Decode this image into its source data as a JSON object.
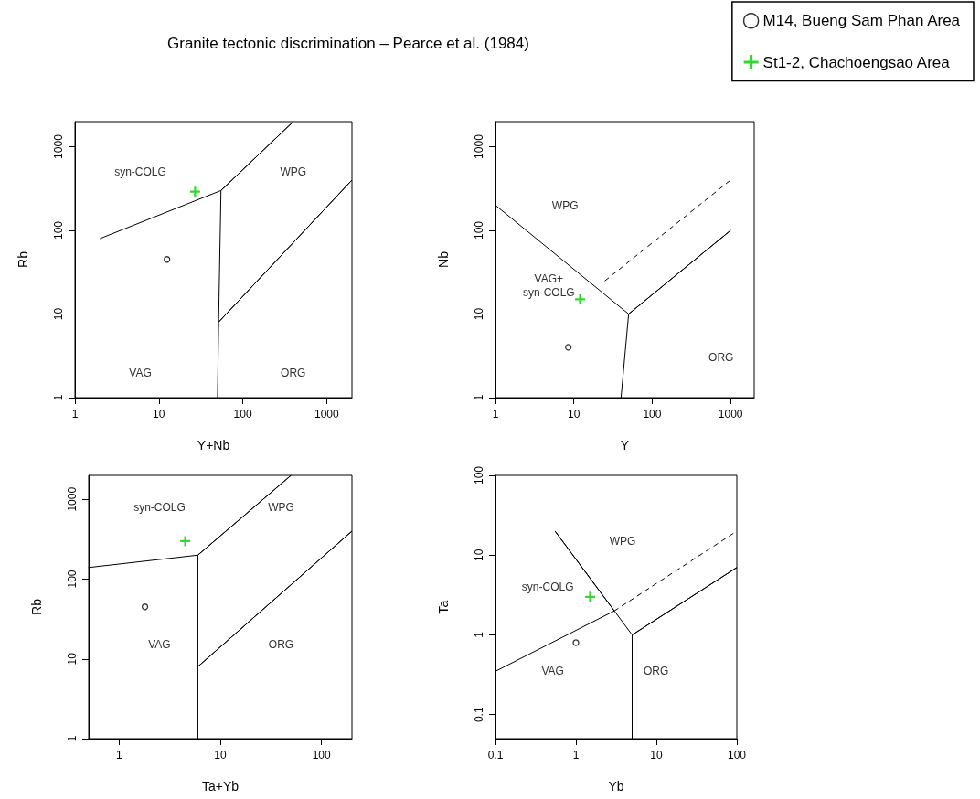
{
  "chart_data": [
    {
      "type": "scatter",
      "title": "Granite tectonic discrimination – Pearce et al. (1984)",
      "xlabel": "Y+Nb",
      "ylabel": "Rb",
      "log": "xy",
      "grid": false,
      "legend": "top right",
      "xlim": [
        1,
        2000
      ],
      "ylim": [
        1,
        2000
      ],
      "xticks": [
        1,
        10,
        100,
        1000
      ],
      "yticks": [
        1,
        10,
        100,
        1000
      ],
      "series": [
        {
          "type": "line",
          "color": "#000000",
          "line_style": "solid",
          "x": [
            2,
            55,
            400,
            55,
            51.5,
            2000,
            51.5,
            50
          ],
          "values": [
            80,
            300,
            2000,
            300,
            8,
            400,
            8,
            1
          ]
        },
        {
          "name": "M14, Bueng Sam Phan Area",
          "color": "#000000",
          "marker": "circle",
          "x": [
            12.5
          ],
          "values": [
            45
          ]
        },
        {
          "name": "St1-2, Chachoengsao Area",
          "color": "#00cc00",
          "marker": "cross",
          "x": [
            27
          ],
          "values": [
            290
          ]
        }
      ],
      "annotations": [
        "syn-COLG",
        "WPG",
        "VAG",
        "ORG"
      ]
    },
    {
      "type": "scatter",
      "xlabel": "Y",
      "ylabel": "Nb",
      "log": "xy",
      "grid": false,
      "xlim": [
        1,
        2000
      ],
      "ylim": [
        1,
        2000
      ],
      "xticks": [
        1,
        10,
        100,
        1000
      ],
      "yticks": [
        1,
        10,
        100,
        1000
      ],
      "series": [
        {
          "type": "line",
          "color": "#000000",
          "line_style": "solid",
          "x": [
            1,
            50,
            1000,
            50,
            40
          ],
          "values": [
            200,
            10,
            100,
            10,
            1
          ]
        },
        {
          "type": "line",
          "color": "#000000",
          "line_style": "dashed",
          "x": [
            25,
            1000
          ],
          "values": [
            25,
            400
          ]
        },
        {
          "color": "#000000",
          "marker": "circle",
          "x": [
            8.5
          ],
          "values": [
            4
          ]
        },
        {
          "color": "#00cc00",
          "marker": "cross",
          "x": [
            12
          ],
          "values": [
            15
          ]
        }
      ],
      "annotations": [
        "WPG",
        "VAG+\nsyn-COLG",
        "ORG"
      ]
    },
    {
      "type": "scatter",
      "xlabel": "Ta+Yb",
      "ylabel": "Rb",
      "log": "xy",
      "grid": false,
      "xlim": [
        0.5,
        200
      ],
      "ylim": [
        1,
        2000
      ],
      "xticks": [
        1,
        10,
        100
      ],
      "yticks": [
        1,
        10,
        100,
        1000
      ],
      "series": [
        {
          "type": "line",
          "color": "#000000",
          "line_style": "solid",
          "x": [
            0.5,
            6,
            50,
            6,
            6,
            200,
            6,
            6
          ],
          "values": [
            140,
            200,
            2000,
            200,
            8,
            400,
            8,
            1
          ]
        },
        {
          "color": "#000000",
          "marker": "circle",
          "x": [
            1.8
          ],
          "values": [
            45
          ]
        },
        {
          "color": "#00cc00",
          "marker": "cross",
          "x": [
            4.5
          ],
          "values": [
            300
          ]
        }
      ],
      "annotations": [
        "syn-COLG",
        "WPG",
        "VAG",
        "ORG"
      ]
    },
    {
      "type": "scatter",
      "xlabel": "Yb",
      "ylabel": "Ta",
      "log": "xy",
      "grid": false,
      "xlim": [
        0.1,
        100
      ],
      "ylim": [
        0.05,
        100
      ],
      "xticks": [
        0.1,
        1,
        10,
        100
      ],
      "yticks": [
        0.1,
        1,
        10,
        100
      ],
      "series": [
        {
          "type": "line",
          "color": "#000000",
          "line_style": "solid",
          "x": [
            0.1,
            3,
            0.55,
            3,
            5,
            100,
            5,
            5
          ],
          "values": [
            0.35,
            2,
            20,
            2,
            1,
            7,
            1,
            0.05
          ]
        },
        {
          "type": "line",
          "color": "#000000",
          "line_style": "dashed",
          "x": [
            3,
            100
          ],
          "values": [
            2,
            20
          ]
        },
        {
          "color": "#000000",
          "marker": "circle",
          "x": [
            1
          ],
          "values": [
            0.8
          ]
        },
        {
          "color": "#00cc00",
          "marker": "cross",
          "x": [
            1.5
          ],
          "values": [
            3
          ]
        }
      ],
      "annotations": [
        "WPG",
        "syn-COLG",
        "VAG",
        "ORG"
      ]
    }
  ]
}
